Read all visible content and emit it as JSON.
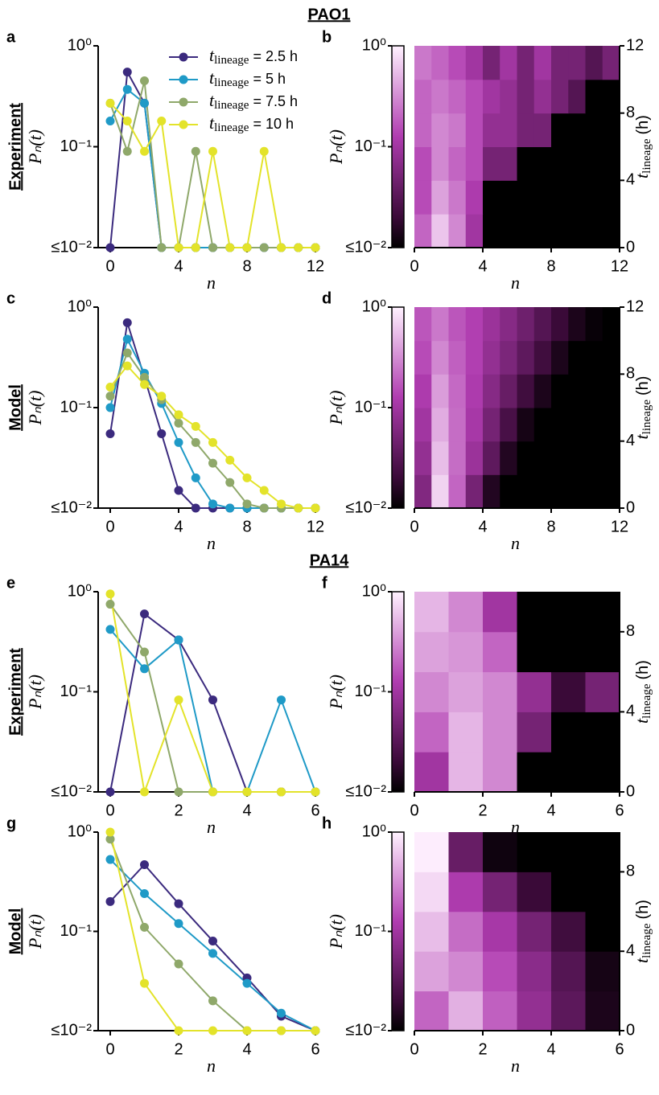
{
  "chart_data": [
    {
      "type": "line",
      "panel": "a",
      "section_title": "PAO1",
      "row_label": "Experiment",
      "ylabel": "Pₙ(t)",
      "xlabel": "n",
      "log_y": true,
      "legend": true,
      "legend_symbol": {
        "base": "t",
        "sub": "lineage"
      },
      "x": [
        0,
        1,
        2,
        3,
        4,
        5,
        6,
        7,
        8,
        9,
        10,
        11,
        12
      ],
      "xlim": [
        0,
        12
      ],
      "xticks": [
        0,
        4,
        8,
        12
      ],
      "ylim": [
        0.01,
        1
      ],
      "yticks": [
        {
          "value": 1,
          "label": "10⁰"
        },
        {
          "value": 0.1,
          "label": "10⁻¹"
        },
        {
          "value": 0.01,
          "label": "≤10⁻²"
        }
      ],
      "series": [
        {
          "name": "= 2.5 h",
          "color": "#3b2a7e",
          "values": [
            0.01,
            0.55,
            0.27,
            0.01,
            0.01,
            0.01,
            0.01,
            0.01,
            0.01,
            0.01,
            0.01,
            0.01,
            0.01
          ]
        },
        {
          "name": "= 5 h",
          "color": "#1f9ac7",
          "values": [
            0.18,
            0.37,
            0.27,
            0.01,
            0.01,
            0.01,
            0.01,
            0.01,
            0.01,
            0.01,
            0.01,
            0.01,
            0.01
          ]
        },
        {
          "name": "= 7.5 h",
          "color": "#8fa86a",
          "values": [
            0.27,
            0.09,
            0.45,
            0.01,
            0.01,
            0.09,
            0.01,
            0.01,
            0.01,
            0.01,
            0.01,
            0.01,
            0.01
          ]
        },
        {
          "name": "= 10 h",
          "color": "#e3e32a",
          "values": [
            0.27,
            0.18,
            0.09,
            0.18,
            0.01,
            0.01,
            0.09,
            0.01,
            0.01,
            0.09,
            0.01,
            0.01,
            0.01
          ]
        }
      ]
    },
    {
      "type": "heatmap",
      "panel": "b",
      "ylabel": "Pₙ(t)",
      "xlabel": "n",
      "y2label": {
        "base": "t",
        "sub": "lineage",
        "rest": "(h)"
      },
      "x_edges": [
        0,
        1,
        2,
        3,
        4,
        5,
        6,
        7,
        8,
        9,
        10,
        11,
        12
      ],
      "t_edges": [
        0,
        2,
        4,
        6,
        8,
        10,
        12
      ],
      "xlim": [
        0,
        12
      ],
      "xticks": [
        0,
        4,
        8,
        12
      ],
      "y2lim": [
        0,
        12
      ],
      "y2ticks": [
        0,
        4,
        8,
        12
      ],
      "clim": [
        0.01,
        1
      ],
      "cticks": [
        {
          "value": 1,
          "label": "10⁰"
        },
        {
          "value": 0.1,
          "label": "10⁻¹"
        },
        {
          "value": 0.01,
          "label": "≤10⁻²"
        }
      ],
      "z": [
        [
          0.2,
          0.6,
          0.3,
          0.1,
          0.01,
          0.01,
          0.01,
          0.01,
          0.01,
          0.01,
          0.01,
          0.01
        ],
        [
          0.15,
          0.4,
          0.25,
          0.12,
          0.01,
          0.01,
          0.01,
          0.01,
          0.01,
          0.01,
          0.01,
          0.01
        ],
        [
          0.15,
          0.3,
          0.2,
          0.15,
          0.05,
          0.05,
          0.01,
          0.01,
          0.01,
          0.01,
          0.01,
          0.01
        ],
        [
          0.2,
          0.3,
          0.25,
          0.15,
          0.08,
          0.08,
          0.05,
          0.05,
          0.01,
          0.01,
          0.01,
          0.01
        ],
        [
          0.2,
          0.25,
          0.2,
          0.15,
          0.1,
          0.08,
          0.05,
          0.08,
          0.05,
          0.03,
          0.01,
          0.01
        ],
        [
          0.25,
          0.2,
          0.15,
          0.1,
          0.05,
          0.1,
          0.05,
          0.1,
          0.05,
          0.05,
          0.03,
          0.05
        ]
      ]
    },
    {
      "type": "line",
      "panel": "c",
      "row_label": "Model",
      "ylabel": "Pₙ(t)",
      "xlabel": "n",
      "log_y": true,
      "x": [
        0,
        1,
        2,
        3,
        4,
        5,
        6,
        7,
        8,
        9,
        10,
        11,
        12
      ],
      "xlim": [
        0,
        12
      ],
      "xticks": [
        0,
        4,
        8,
        12
      ],
      "ylim": [
        0.01,
        1
      ],
      "yticks": [
        {
          "value": 1,
          "label": "10⁰"
        },
        {
          "value": 0.1,
          "label": "10⁻¹"
        },
        {
          "value": 0.01,
          "label": "≤10⁻²"
        }
      ],
      "series": [
        {
          "color": "#3b2a7e",
          "values": [
            0.055,
            0.7,
            0.2,
            0.055,
            0.015,
            0.01,
            0.01,
            0.01,
            0.01,
            0.01,
            0.01,
            0.01,
            0.01
          ]
        },
        {
          "color": "#1f9ac7",
          "values": [
            0.1,
            0.48,
            0.22,
            0.11,
            0.045,
            0.02,
            0.011,
            0.01,
            0.01,
            0.01,
            0.01,
            0.01,
            0.01
          ]
        },
        {
          "color": "#8fa86a",
          "values": [
            0.13,
            0.35,
            0.2,
            0.12,
            0.07,
            0.045,
            0.028,
            0.018,
            0.011,
            0.01,
            0.01,
            0.01,
            0.01
          ]
        },
        {
          "color": "#e3e32a",
          "values": [
            0.16,
            0.26,
            0.17,
            0.13,
            0.085,
            0.065,
            0.045,
            0.03,
            0.02,
            0.015,
            0.011,
            0.01,
            0.01
          ]
        }
      ]
    },
    {
      "type": "heatmap",
      "panel": "d",
      "ylabel": "Pₙ(t)",
      "xlabel": "n",
      "y2label": {
        "base": "t",
        "sub": "lineage",
        "rest": "(h)"
      },
      "x_edges": [
        0,
        1,
        2,
        3,
        4,
        5,
        6,
        7,
        8,
        9,
        10,
        11,
        12
      ],
      "t_edges": [
        0,
        2,
        4,
        6,
        8,
        10,
        12
      ],
      "xlim": [
        0,
        12
      ],
      "xticks": [
        0,
        4,
        8,
        12
      ],
      "y2lim": [
        0,
        12
      ],
      "y2ticks": [
        0,
        4,
        8,
        12
      ],
      "clim": [
        0.01,
        1
      ],
      "cticks": [
        {
          "value": 1,
          "label": "10⁰"
        },
        {
          "value": 0.1,
          "label": "10⁻¹"
        },
        {
          "value": 0.01,
          "label": "≤10⁻²"
        }
      ],
      "z": [
        [
          0.06,
          0.7,
          0.2,
          0.05,
          0.015,
          0.01,
          0.01,
          0.01,
          0.01,
          0.01,
          0.01,
          0.01
        ],
        [
          0.08,
          0.55,
          0.22,
          0.09,
          0.035,
          0.015,
          0.01,
          0.01,
          0.01,
          0.01,
          0.01,
          0.01
        ],
        [
          0.1,
          0.45,
          0.22,
          0.11,
          0.05,
          0.025,
          0.013,
          0.01,
          0.01,
          0.01,
          0.01,
          0.01
        ],
        [
          0.12,
          0.38,
          0.21,
          0.12,
          0.065,
          0.04,
          0.022,
          0.014,
          0.01,
          0.01,
          0.01,
          0.01
        ],
        [
          0.15,
          0.3,
          0.19,
          0.13,
          0.08,
          0.055,
          0.035,
          0.022,
          0.014,
          0.01,
          0.01,
          0.01
        ],
        [
          0.17,
          0.25,
          0.17,
          0.13,
          0.09,
          0.065,
          0.045,
          0.03,
          0.02,
          0.014,
          0.011,
          0.01
        ]
      ]
    },
    {
      "type": "line",
      "panel": "e",
      "section_title": "PA14",
      "row_label": "Experiment",
      "ylabel": "Pₙ(t)",
      "xlabel": "n",
      "log_y": true,
      "x": [
        0,
        1,
        2,
        3,
        4,
        5,
        6
      ],
      "xlim": [
        0,
        6
      ],
      "xticks": [
        0,
        2,
        4,
        6
      ],
      "ylim": [
        0.01,
        1
      ],
      "yticks": [
        {
          "value": 1,
          "label": "10⁰"
        },
        {
          "value": 0.1,
          "label": "10⁻¹"
        },
        {
          "value": 0.01,
          "label": "≤10⁻²"
        }
      ],
      "series": [
        {
          "color": "#3b2a7e",
          "values": [
            0.01,
            0.6,
            0.33,
            0.083,
            0.01,
            0.01,
            0.01
          ]
        },
        {
          "color": "#1f9ac7",
          "values": [
            0.42,
            0.17,
            0.33,
            0.01,
            0.01,
            0.083,
            0.01
          ]
        },
        {
          "color": "#8fa86a",
          "values": [
            0.75,
            0.25,
            0.01,
            0.01,
            0.01,
            0.01,
            0.01
          ]
        },
        {
          "color": "#e3e32a",
          "values": [
            0.95,
            0.01,
            0.083,
            0.01,
            0.01,
            0.01,
            0.01
          ]
        }
      ]
    },
    {
      "type": "heatmap",
      "panel": "f",
      "ylabel": "Pₙ(t)",
      "xlabel": "n",
      "y2label": {
        "base": "t",
        "sub": "lineage",
        "rest": "(h)"
      },
      "x_edges": [
        0,
        1,
        2,
        3,
        4,
        5,
        6
      ],
      "t_edges": [
        0,
        2,
        4,
        6,
        8,
        10
      ],
      "xlim": [
        0,
        6
      ],
      "xticks": [
        0,
        2,
        4,
        6
      ],
      "y2lim": [
        0,
        10
      ],
      "y2ticks": [
        0,
        4,
        8
      ],
      "clim": [
        0.01,
        1
      ],
      "cticks": [
        {
          "value": 1,
          "label": "10⁰"
        },
        {
          "value": 0.1,
          "label": "10⁻¹"
        },
        {
          "value": 0.01,
          "label": "≤10⁻²"
        }
      ],
      "z": [
        [
          0.1,
          0.5,
          0.3,
          0.01,
          0.01,
          0.01
        ],
        [
          0.2,
          0.5,
          0.3,
          0.05,
          0.01,
          0.01
        ],
        [
          0.3,
          0.4,
          0.3,
          0.08,
          0.02,
          0.05
        ],
        [
          0.4,
          0.35,
          0.2,
          0.01,
          0.01,
          0.01
        ],
        [
          0.5,
          0.3,
          0.1,
          0.01,
          0.01,
          0.01
        ]
      ]
    },
    {
      "type": "line",
      "panel": "g",
      "row_label": "Model",
      "ylabel": "Pₙ(t)",
      "xlabel": "n",
      "log_y": true,
      "x": [
        0,
        1,
        2,
        3,
        4,
        5,
        6
      ],
      "xlim": [
        0,
        6
      ],
      "xticks": [
        0,
        2,
        4,
        6
      ],
      "ylim": [
        0.01,
        1
      ],
      "yticks": [
        {
          "value": 1,
          "label": "10⁰"
        },
        {
          "value": 0.1,
          "label": "10⁻¹"
        },
        {
          "value": 0.01,
          "label": "≤10⁻²"
        }
      ],
      "series": [
        {
          "color": "#3b2a7e",
          "values": [
            0.2,
            0.47,
            0.19,
            0.08,
            0.034,
            0.014,
            0.01
          ]
        },
        {
          "color": "#1f9ac7",
          "values": [
            0.53,
            0.24,
            0.12,
            0.06,
            0.03,
            0.015,
            0.01
          ]
        },
        {
          "color": "#8fa86a",
          "values": [
            0.85,
            0.11,
            0.047,
            0.02,
            0.01,
            0.01,
            0.01
          ]
        },
        {
          "color": "#e3e32a",
          "values": [
            1.0,
            0.03,
            0.01,
            0.01,
            0.01,
            0.01,
            0.01
          ]
        }
      ]
    },
    {
      "type": "heatmap",
      "panel": "h",
      "ylabel": "Pₙ(t)",
      "xlabel": "n",
      "y2label": {
        "base": "t",
        "sub": "lineage",
        "rest": "(h)"
      },
      "x_edges": [
        0,
        1,
        2,
        3,
        4,
        5,
        6
      ],
      "t_edges": [
        0,
        2,
        4,
        6,
        8,
        10
      ],
      "xlim": [
        0,
        6
      ],
      "xticks": [
        0,
        2,
        4,
        6
      ],
      "y2lim": [
        0,
        10
      ],
      "y2ticks": [
        0,
        4,
        8
      ],
      "clim": [
        0.01,
        1
      ],
      "cticks": [
        {
          "value": 1,
          "label": "10⁰"
        },
        {
          "value": 0.1,
          "label": "10⁻¹"
        },
        {
          "value": 0.01,
          "label": "≤10⁻²"
        }
      ],
      "z": [
        [
          0.2,
          0.47,
          0.19,
          0.08,
          0.034,
          0.014
        ],
        [
          0.4,
          0.3,
          0.15,
          0.07,
          0.03,
          0.013
        ],
        [
          0.55,
          0.22,
          0.11,
          0.05,
          0.022,
          0.01
        ],
        [
          0.75,
          0.12,
          0.05,
          0.02,
          0.01,
          0.01
        ],
        [
          0.95,
          0.04,
          0.012,
          0.01,
          0.01,
          0.01
        ]
      ]
    }
  ]
}
